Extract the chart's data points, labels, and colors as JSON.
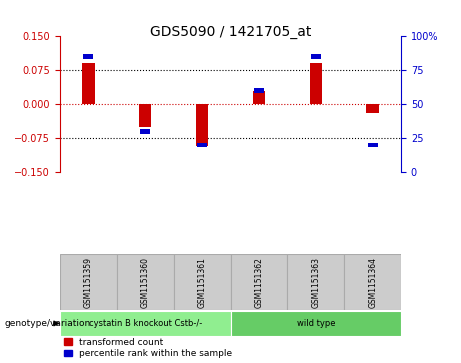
{
  "title": "GDS5090 / 1421705_at",
  "categories": [
    "GSM1151359",
    "GSM1151360",
    "GSM1151361",
    "GSM1151362",
    "GSM1151363",
    "GSM1151364"
  ],
  "red_values": [
    0.092,
    -0.05,
    -0.092,
    0.03,
    0.092,
    -0.02
  ],
  "blue_values_pct": [
    85,
    30,
    20,
    60,
    85,
    20
  ],
  "ylim_left": [
    -0.15,
    0.15
  ],
  "ylim_right": [
    0,
    100
  ],
  "yticks_left": [
    -0.15,
    -0.075,
    0,
    0.075,
    0.15
  ],
  "yticks_right": [
    0,
    25,
    50,
    75,
    100
  ],
  "red_color": "#cc0000",
  "blue_color": "#0000cc",
  "groups": [
    {
      "label": "cystatin B knockout Cstb-/-",
      "samples": [
        0,
        1,
        2
      ],
      "color": "#90ee90"
    },
    {
      "label": "wild type",
      "samples": [
        3,
        4,
        5
      ],
      "color": "#66cc66"
    }
  ],
  "group_label": "genotype/variation",
  "legend_red": "transformed count",
  "legend_blue": "percentile rank within the sample",
  "bg_color": "#ffffff",
  "plot_bg": "#ffffff",
  "title_fontsize": 10,
  "tick_fontsize": 7,
  "label_fontsize": 7
}
